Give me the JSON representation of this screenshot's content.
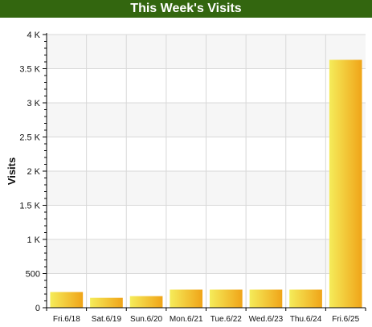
{
  "colors": {
    "title_bg": "#33660f",
    "title_text": "#ffffff",
    "bar_light": "#f5ec5a",
    "bar_dark": "#f0a418",
    "band_alt": "#f6f6f6",
    "grid": "#d8d8d8",
    "axis": "#000000"
  },
  "chart_data": {
    "type": "bar",
    "title": "This Week's Visits",
    "xlabel": "",
    "ylabel": "Visits",
    "categories": [
      "Fri.6/18",
      "Sat.6/19",
      "Sun.6/20",
      "Mon.6/21",
      "Tue.6/22",
      "Wed.6/23",
      "Thu.6/24",
      "Fri.6/25"
    ],
    "values": [
      230,
      145,
      170,
      265,
      265,
      265,
      265,
      3630
    ],
    "ylim": [
      0,
      4000
    ],
    "yticks": [
      0,
      500,
      1000,
      1500,
      2000,
      2500,
      3000,
      3500,
      4000
    ],
    "ytick_labels": [
      "0",
      "500",
      "1 K",
      "1.5 K",
      "2 K",
      "2.5 K",
      "3 K",
      "3.5 K",
      "4 K"
    ],
    "grid": true,
    "legend": "none"
  }
}
